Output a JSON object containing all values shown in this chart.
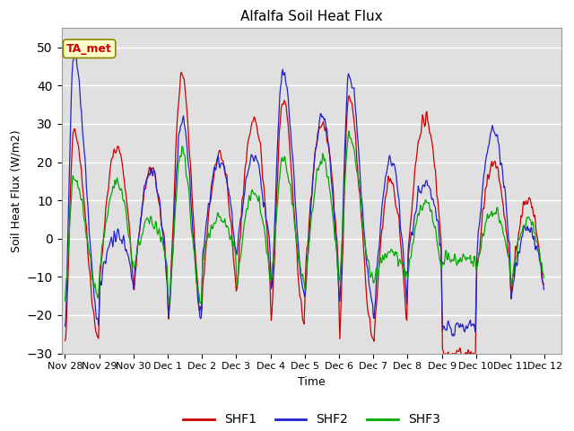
{
  "title": "Alfalfa Soil Heat Flux",
  "xlabel": "Time",
  "ylabel": "Soil Heat Flux (W/m2)",
  "ylim": [
    -30,
    55
  ],
  "yticks": [
    -30,
    -20,
    -10,
    0,
    10,
    20,
    30,
    40,
    50
  ],
  "colors": {
    "SHF1": "#cc0000",
    "SHF2": "#2222cc",
    "SHF3": "#00aa00"
  },
  "annotation_text": "TA_met",
  "annotation_color": "#cc0000",
  "annotation_bg": "#ffffcc",
  "bg_color": "#e0e0e0",
  "tick_labels": [
    "Nov 28",
    "Nov 29",
    "Nov 30",
    "Dec 1",
    "Dec 2",
    "Dec 3",
    "Dec 4",
    "Dec 5",
    "Dec 6",
    "Dec 7",
    "Dec 8",
    "Dec 9",
    "Dec 10",
    "Dec 11",
    "Dec 12"
  ],
  "tick_positions": [
    0,
    1,
    2,
    3,
    4,
    5,
    6,
    7,
    8,
    9,
    10,
    11,
    12,
    13,
    14
  ]
}
